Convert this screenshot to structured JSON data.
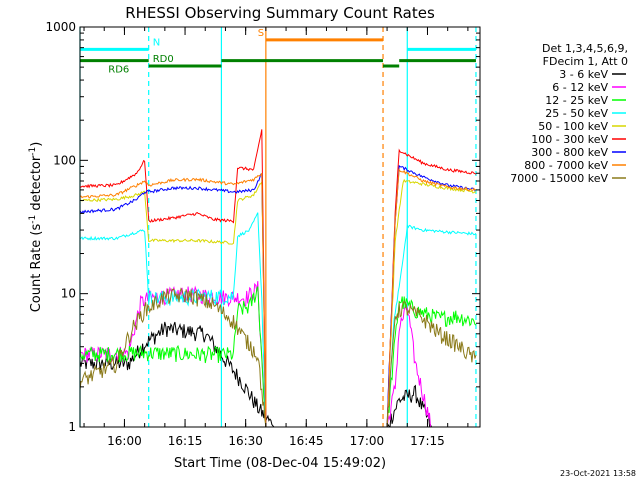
{
  "chart_data": {
    "type": "line",
    "title": "RHESSI Observing Summary Count Rates",
    "xlabel": "Start Time (08-Dec-04 15:49:02)",
    "ylabel_main": "Count Rate (s",
    "ylabel_sup1": "-1",
    "ylabel_mid": " detector",
    "ylabel_sup2": "-1",
    "ylabel_end": ")",
    "y_scale": "log",
    "ylim": [
      1,
      1000
    ],
    "xlim": [
      "15:49",
      "17:28"
    ],
    "x_ticks": [
      "16:00",
      "16:15",
      "16:30",
      "16:45",
      "17:00",
      "17:15"
    ],
    "y_ticks": [
      "1",
      "10",
      "100",
      "1000"
    ],
    "grid": false,
    "legend_position": "right",
    "legend_header": [
      "Det 1,3,4,5,6,9,",
      "FDecim 1, Att 0"
    ],
    "series": [
      {
        "name": "3 - 6 keV",
        "color": "#000000",
        "points": [
          [
            "15:49",
            3.0
          ],
          [
            "16:01",
            3.0
          ],
          [
            "16:05",
            4.2
          ],
          [
            "16:10",
            5.5
          ],
          [
            "16:20",
            5.0
          ],
          [
            "16:29",
            2.2
          ],
          [
            "16:33",
            1.4
          ],
          [
            "16:37",
            1.0
          ],
          [
            "17:05",
            1.0
          ],
          [
            "17:08",
            1.6
          ],
          [
            "17:12",
            1.8
          ],
          [
            "17:16",
            1.0
          ],
          [
            "17:27",
            1.0
          ]
        ]
      },
      {
        "name": "6 - 12 keV",
        "color": "#ff00ff",
        "points": [
          [
            "15:49",
            3.5
          ],
          [
            "16:01",
            3.6
          ],
          [
            "16:04",
            8.5
          ],
          [
            "16:06",
            9.3
          ],
          [
            "16:15",
            10.0
          ],
          [
            "16:23",
            9.5
          ],
          [
            "16:30",
            9.3
          ],
          [
            "16:33",
            11.0
          ],
          [
            "16:35",
            1.0
          ],
          [
            "17:05",
            1.0
          ],
          [
            "17:07",
            2.0
          ],
          [
            "17:08",
            5.5
          ],
          [
            "17:10",
            8.0
          ],
          [
            "17:12",
            3.0
          ],
          [
            "17:16",
            1.0
          ],
          [
            "17:27",
            1.0
          ]
        ]
      },
      {
        "name": "12 - 25 keV",
        "color": "#00ff00",
        "points": [
          [
            "15:49",
            3.5
          ],
          [
            "16:05",
            3.6
          ],
          [
            "16:06",
            3.6
          ],
          [
            "16:20",
            3.5
          ],
          [
            "16:27",
            3.5
          ],
          [
            "16:28",
            7.5
          ],
          [
            "16:31",
            8.0
          ],
          [
            "16:33",
            11.0
          ],
          [
            "16:35",
            1.0
          ],
          [
            "17:05",
            1.0
          ],
          [
            "17:07",
            4.5
          ],
          [
            "17:08",
            9.0
          ],
          [
            "17:12",
            7.5
          ],
          [
            "17:18",
            6.5
          ],
          [
            "17:22",
            6.8
          ],
          [
            "17:27",
            6.2
          ]
        ]
      },
      {
        "name": "25 - 50 keV",
        "color": "#00ffff",
        "points": [
          [
            "15:49",
            26
          ],
          [
            "15:58",
            26
          ],
          [
            "16:03",
            29
          ],
          [
            "16:05",
            30
          ],
          [
            "16:06",
            9.2
          ],
          [
            "16:18",
            9.5
          ],
          [
            "16:27",
            9.6
          ],
          [
            "16:28",
            27
          ],
          [
            "16:31",
            30
          ],
          [
            "16:33",
            40
          ],
          [
            "16:34",
            9.0
          ],
          [
            "16:35",
            1.0
          ],
          [
            "17:05",
            1.0
          ],
          [
            "17:07",
            7.5
          ],
          [
            "17:08",
            11.0
          ],
          [
            "17:10",
            32
          ],
          [
            "17:14",
            30
          ],
          [
            "17:20",
            29
          ],
          [
            "17:27",
            28
          ]
        ]
      },
      {
        "name": "50 - 100 keV",
        "color": "#d7d700",
        "points": [
          [
            "15:49",
            50
          ],
          [
            "15:58",
            51
          ],
          [
            "16:03",
            55
          ],
          [
            "16:05",
            58
          ],
          [
            "16:06",
            25
          ],
          [
            "16:18",
            25
          ],
          [
            "16:27",
            24
          ],
          [
            "16:28",
            50
          ],
          [
            "16:32",
            55
          ],
          [
            "16:34",
            70
          ],
          [
            "16:35",
            1.0
          ],
          [
            "17:05",
            1.0
          ],
          [
            "17:07",
            25
          ],
          [
            "17:09",
            70
          ],
          [
            "17:12",
            68
          ],
          [
            "17:18",
            63
          ],
          [
            "17:27",
            58
          ]
        ]
      },
      {
        "name": "100 - 300 keV",
        "color": "#ff0000",
        "points": [
          [
            "15:49",
            64
          ],
          [
            "15:58",
            65
          ],
          [
            "16:03",
            80
          ],
          [
            "16:05",
            100
          ],
          [
            "16:06",
            35
          ],
          [
            "16:12",
            37
          ],
          [
            "16:18",
            40
          ],
          [
            "16:22",
            36
          ],
          [
            "16:27",
            35
          ],
          [
            "16:28",
            88
          ],
          [
            "16:32",
            85
          ],
          [
            "16:34",
            170
          ],
          [
            "16:35",
            1.0
          ],
          [
            "17:05",
            1.0
          ],
          [
            "17:07",
            40
          ],
          [
            "17:08",
            120
          ],
          [
            "17:10",
            110
          ],
          [
            "17:14",
            95
          ],
          [
            "17:20",
            85
          ],
          [
            "17:27",
            80
          ]
        ]
      },
      {
        "name": "300 - 800 keV",
        "color": "#0000ff",
        "points": [
          [
            "15:49",
            41
          ],
          [
            "15:58",
            43
          ],
          [
            "16:03",
            51
          ],
          [
            "16:05",
            58
          ],
          [
            "16:06",
            58
          ],
          [
            "16:12",
            62
          ],
          [
            "16:18",
            62
          ],
          [
            "16:27",
            58
          ],
          [
            "16:28",
            58
          ],
          [
            "16:32",
            60
          ],
          [
            "16:34",
            80
          ],
          [
            "16:35",
            1.0
          ],
          [
            "17:05",
            1.0
          ],
          [
            "17:07",
            35
          ],
          [
            "17:08",
            90
          ],
          [
            "17:10",
            85
          ],
          [
            "17:14",
            75
          ],
          [
            "17:20",
            65
          ],
          [
            "17:27",
            60
          ]
        ]
      },
      {
        "name": "800 - 7000 keV",
        "color": "#ff8000",
        "points": [
          [
            "15:49",
            53
          ],
          [
            "15:58",
            55
          ],
          [
            "16:03",
            65
          ],
          [
            "16:05",
            70
          ],
          [
            "16:06",
            65
          ],
          [
            "16:12",
            71
          ],
          [
            "16:18",
            72
          ],
          [
            "16:27",
            66
          ],
          [
            "16:28",
            67
          ],
          [
            "16:32",
            72
          ],
          [
            "16:34",
            80
          ],
          [
            "16:35",
            1.0
          ],
          [
            "17:05",
            1.0
          ],
          [
            "17:07",
            35
          ],
          [
            "17:08",
            85
          ],
          [
            "17:10",
            80
          ],
          [
            "17:14",
            70
          ],
          [
            "17:20",
            63
          ],
          [
            "17:27",
            60
          ]
        ]
      },
      {
        "name": "7000 - 15000 keV",
        "color": "#8b7a1a",
        "points": [
          [
            "15:49",
            2.2
          ],
          [
            "15:58",
            3.0
          ],
          [
            "16:02",
            5.5
          ],
          [
            "16:05",
            7.5
          ],
          [
            "16:10",
            9.5
          ],
          [
            "16:16",
            9.8
          ],
          [
            "16:22",
            8.3
          ],
          [
            "16:27",
            6.2
          ],
          [
            "16:30",
            4.5
          ],
          [
            "16:33",
            3.5
          ],
          [
            "16:35",
            1.0
          ],
          [
            "17:05",
            1.0
          ],
          [
            "17:07",
            7.0
          ],
          [
            "17:09",
            8.0
          ],
          [
            "17:14",
            6.5
          ],
          [
            "17:18",
            5.0
          ],
          [
            "17:22",
            4.2
          ],
          [
            "17:27",
            3.2
          ]
        ]
      }
    ],
    "state_bars": [
      {
        "label": "N",
        "color": "#00ffff",
        "level": 680,
        "start": "15:49",
        "end": "16:06",
        "label_at": "16:07"
      },
      {
        "label": "",
        "color": "#00ffff",
        "level": 680,
        "start": "17:10",
        "end": "17:27",
        "label_at": ""
      },
      {
        "label": "RD6",
        "color": "#008000",
        "level": 560,
        "start": "15:49",
        "end": "16:06",
        "label_at": "15:56"
      },
      {
        "label": "RD0",
        "color": "#008000",
        "level": 510,
        "start": "16:06",
        "end": "16:24",
        "label_at": "16:07"
      },
      {
        "label": "",
        "color": "#008000",
        "level": 560,
        "start": "16:24",
        "end": "17:04",
        "label_at": ""
      },
      {
        "label": "",
        "color": "#008000",
        "level": 510,
        "start": "17:04",
        "end": "17:08",
        "label_at": ""
      },
      {
        "label": "",
        "color": "#008000",
        "level": 560,
        "start": "17:08",
        "end": "17:27",
        "label_at": ""
      },
      {
        "label": "S",
        "color": "#ff8000",
        "level": 800,
        "start": "16:35",
        "end": "17:04",
        "label_at": "16:33"
      }
    ],
    "vlines": [
      {
        "time": "15:49",
        "color": "#00ffff",
        "dashed": false
      },
      {
        "time": "16:06",
        "color": "#00ffff",
        "dashed": true
      },
      {
        "time": "16:24",
        "color": "#00ffff",
        "dashed": false
      },
      {
        "time": "16:35",
        "color": "#ff8000",
        "dashed": false
      },
      {
        "time": "17:04",
        "color": "#ff8000",
        "dashed": true
      },
      {
        "time": "17:10",
        "color": "#00ffff",
        "dashed": false
      },
      {
        "time": "17:27",
        "color": "#00ffff",
        "dashed": true
      }
    ],
    "footer_timestamp": "23-Oct-2021 13:58"
  }
}
